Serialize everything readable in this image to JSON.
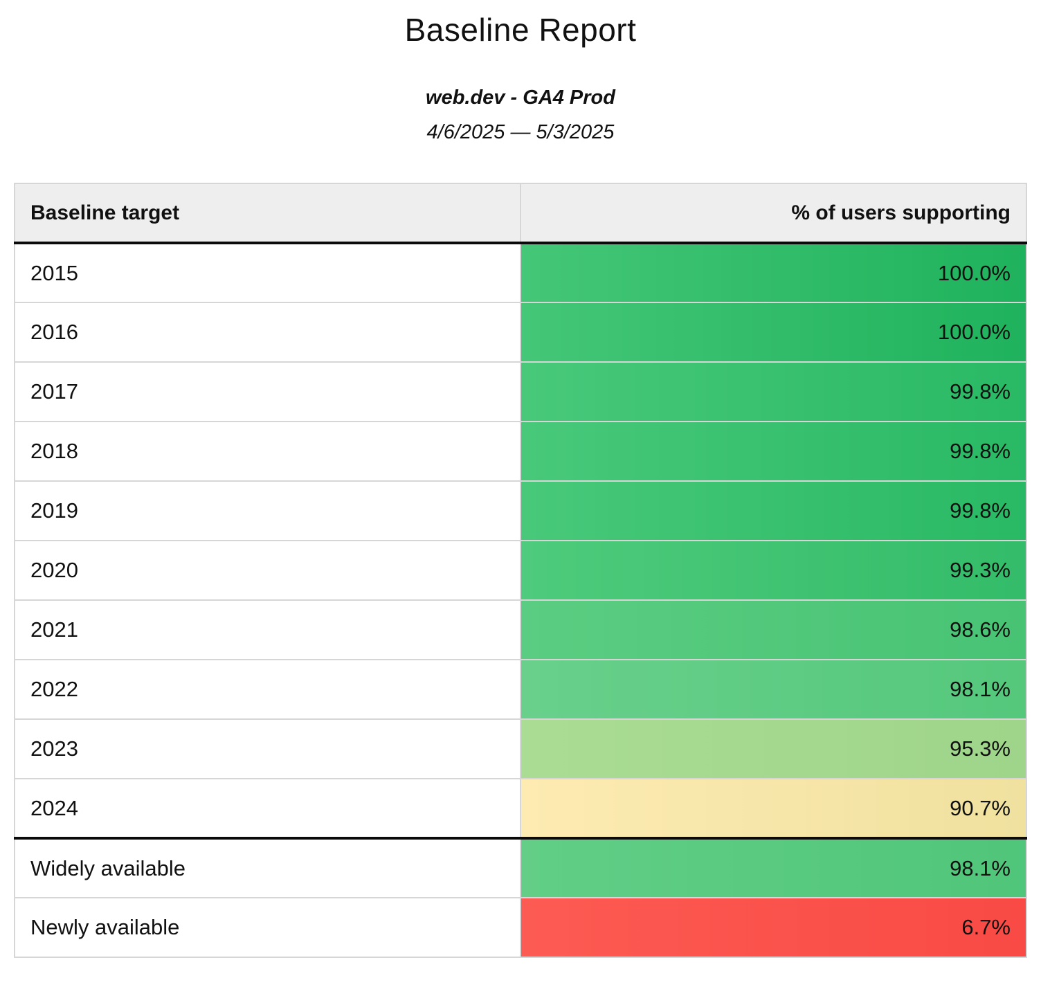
{
  "report": {
    "title": "Baseline Report",
    "property": "web.dev - GA4 Prod",
    "date_range": "4/6/2025 — 5/3/2025"
  },
  "table": {
    "header": {
      "target": "Baseline target",
      "support": "% of users supporting"
    },
    "rows": [
      {
        "target": "2015",
        "support": "100.0%",
        "color_left": "#44c777",
        "color_right": "#1fb25c",
        "section_break": false
      },
      {
        "target": "2016",
        "support": "100.0%",
        "color_left": "#44c777",
        "color_right": "#1fb25c",
        "section_break": false
      },
      {
        "target": "2017",
        "support": "99.8%",
        "color_left": "#48c97a",
        "color_right": "#29b964",
        "section_break": false
      },
      {
        "target": "2018",
        "support": "99.8%",
        "color_left": "#48c97a",
        "color_right": "#29b964",
        "section_break": false
      },
      {
        "target": "2019",
        "support": "99.8%",
        "color_left": "#48c97a",
        "color_right": "#29b964",
        "section_break": false
      },
      {
        "target": "2020",
        "support": "99.3%",
        "color_left": "#4ecb7c",
        "color_right": "#33bc69",
        "section_break": false
      },
      {
        "target": "2021",
        "support": "98.6%",
        "color_left": "#5bcd82",
        "color_right": "#48c374",
        "section_break": false
      },
      {
        "target": "2022",
        "support": "98.1%",
        "color_left": "#68d08b",
        "color_right": "#55c87c",
        "section_break": false
      },
      {
        "target": "2023",
        "support": "95.3%",
        "color_left": "#abdc94",
        "color_right": "#9ed58a",
        "section_break": false
      },
      {
        "target": "2024",
        "support": "90.7%",
        "color_left": "#fdebb2",
        "color_right": "#f0e19f",
        "section_break": false
      },
      {
        "target": "Widely available",
        "support": "98.1%",
        "color_left": "#62ce86",
        "color_right": "#50c67a",
        "section_break": true
      },
      {
        "target": "Newly available",
        "support": "6.7%",
        "color_left": "#fc5b53",
        "color_right": "#f94a45",
        "section_break": false
      }
    ]
  },
  "chart_data": {
    "type": "table",
    "title": "Baseline Report",
    "subtitle": "web.dev - GA4 Prod",
    "date_range": "4/6/2025 — 5/3/2025",
    "columns": [
      "Baseline target",
      "% of users supporting"
    ],
    "categories": [
      "2015",
      "2016",
      "2017",
      "2018",
      "2019",
      "2020",
      "2021",
      "2022",
      "2023",
      "2024",
      "Widely available",
      "Newly available"
    ],
    "values": [
      100.0,
      100.0,
      99.8,
      99.8,
      99.8,
      99.3,
      98.6,
      98.1,
      95.3,
      90.7,
      98.1,
      6.7
    ],
    "value_format": "percent_one_decimal",
    "color_scale": "red-yellow-green",
    "legend_position": "none",
    "grid": true
  },
  "colors": {
    "page_bg": "#ffffff",
    "header_bg": "#eeeeee",
    "grid_border": "#d6d6d6",
    "section_border": "#0a0a0a",
    "text": "#111111",
    "scale_green_high": "#1fb25c",
    "scale_green_mid": "#55c87c",
    "scale_green_low": "#9ed58a",
    "scale_yellow": "#f5e6a8",
    "scale_red": "#f94a45"
  }
}
